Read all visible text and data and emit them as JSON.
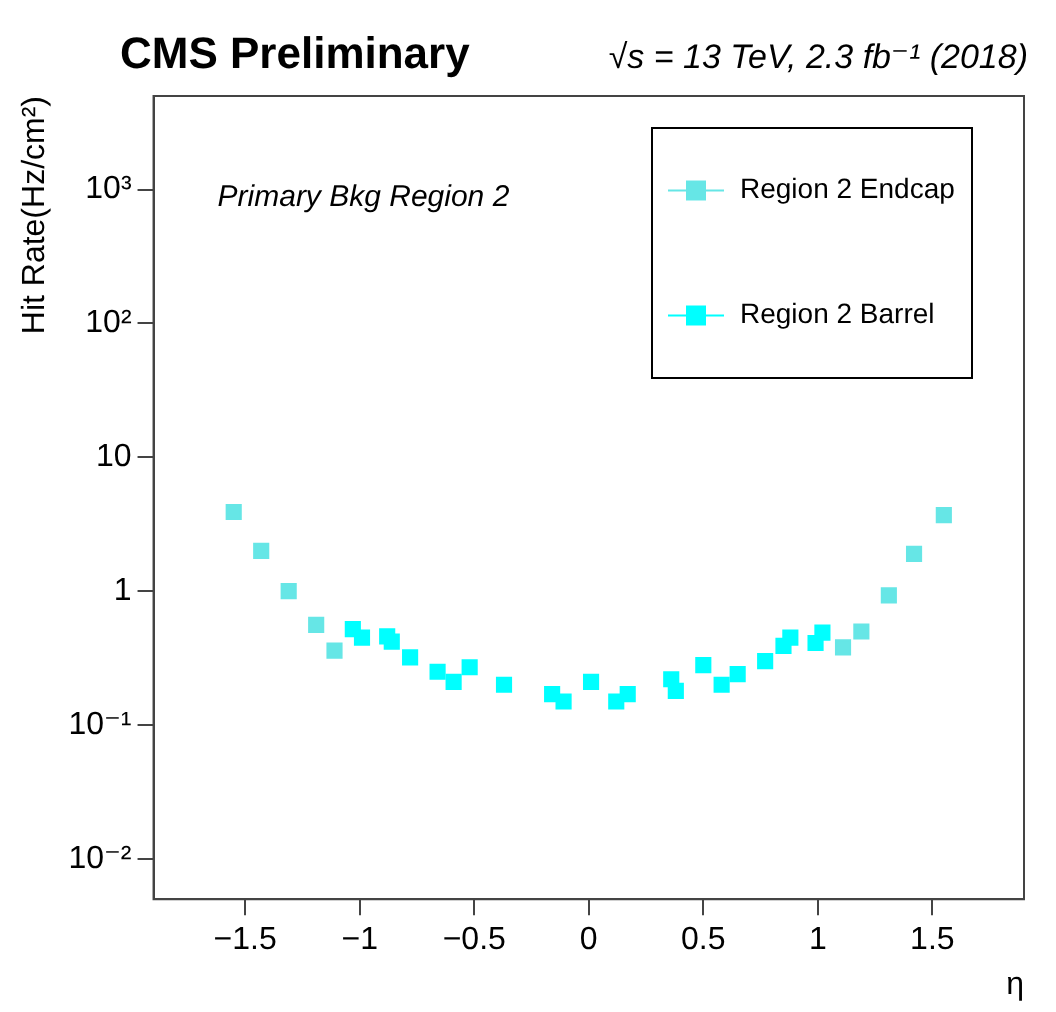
{
  "chart_data": {
    "type": "scatter",
    "title": "CMS Preliminary",
    "subtitle": "√s = 13 TeV, 2.3 fb⁻¹ (2018)",
    "xlabel": "η",
    "ylabel": "Hit Rate(Hz/cm²)",
    "annotations": [
      "Primary Bkg Region 2"
    ],
    "series": [
      {
        "name": "Region 2 Endcap",
        "color": "#66e6e6",
        "x": [
          -1.55,
          -1.43,
          -1.31,
          -1.19,
          -1.11,
          1.11,
          1.19,
          1.31,
          1.42,
          1.55
        ],
        "values": [
          3.9,
          2.0,
          1.0,
          0.56,
          0.36,
          0.38,
          0.5,
          0.93,
          1.9,
          3.7
        ]
      },
      {
        "name": "Region 2 Barrel",
        "color": "#00ffff",
        "x": [
          -1.03,
          -0.99,
          -0.88,
          -0.86,
          -0.78,
          -0.66,
          -0.59,
          -0.52,
          -0.38,
          -0.37,
          -0.16,
          -0.11,
          0.01,
          0.12,
          0.17,
          0.36,
          0.38,
          0.5,
          0.58,
          0.65,
          0.77,
          0.85,
          0.88,
          0.99,
          1.02
        ],
        "values": [
          0.52,
          0.45,
          0.46,
          0.42,
          0.32,
          0.25,
          0.21,
          0.27,
          null,
          0.2,
          0.17,
          0.15,
          0.21,
          0.15,
          0.17,
          0.22,
          0.18,
          0.28,
          0.2,
          0.24,
          0.3,
          0.39,
          0.45,
          0.41,
          0.49
        ]
      }
    ],
    "xlim": [
      -1.9,
      1.9
    ],
    "xticks": [
      {
        "value": -1.5,
        "label": "−1.5"
      },
      {
        "value": -1,
        "label": "−1"
      },
      {
        "value": -0.5,
        "label": "−0.5"
      },
      0,
      0.5,
      1,
      1.5
    ],
    "ylim": [
      0.005,
      5000
    ],
    "yticks": [
      {
        "value": 0.01,
        "label": "10⁻²"
      },
      {
        "value": 0.1,
        "label": "10⁻¹"
      },
      1,
      10,
      {
        "value": 100,
        "label": "10²"
      },
      {
        "value": 1000,
        "label": "10³"
      }
    ],
    "log": "y",
    "grid": false,
    "legend": "top right",
    "marker": "square"
  }
}
